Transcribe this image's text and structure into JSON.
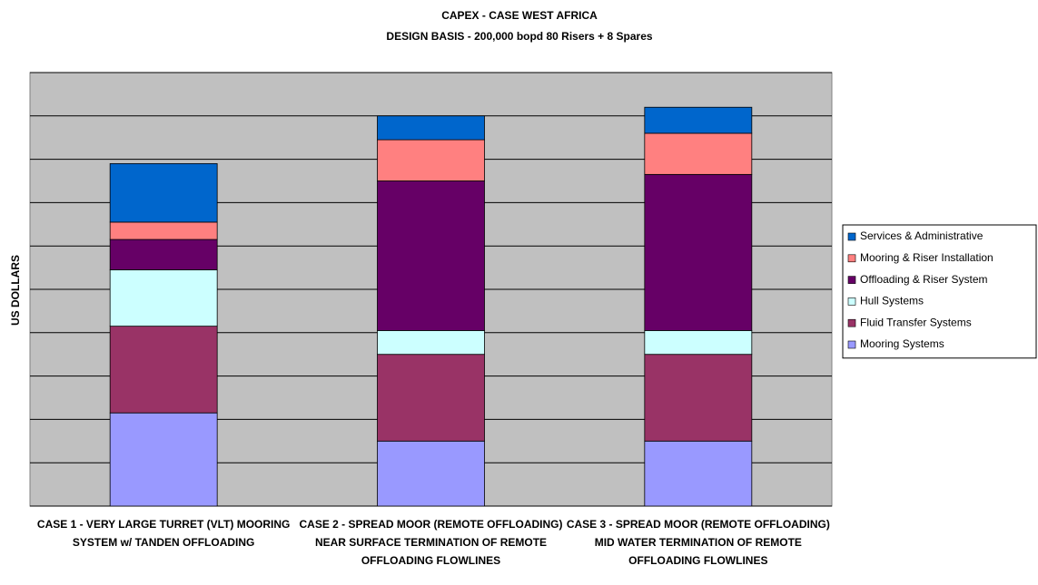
{
  "chart_data": {
    "type": "bar",
    "stacked": true,
    "title": "CAPEX - CASE WEST AFRICA",
    "subtitle": "DESIGN BASIS - 200,000 bopd 80 Risers + 8 Spares",
    "y_label": "US DOLLARS",
    "categories": [
      "CASE 1 - VERY LARGE TURRET (VLT) MOORING SYSTEM w/ TANDEN OFFLOADING",
      "CASE 2 - SPREAD MOOR (REMOTE OFFLOADING) NEAR SURFACE TERMINATION OF REMOTE OFFLOADING FLOWLINES",
      "CASE 3 - SPREAD MOOR (REMOTE OFFLOADING) MID WATER TERMINATION OF REMOTE OFFLOADING FLOWLINES"
    ],
    "series": [
      {
        "name": "Mooring Systems",
        "color": "#9999ff",
        "values": [
          2.15,
          1.5,
          1.5
        ]
      },
      {
        "name": "Fluid Transfer Systems",
        "color": "#993366",
        "values": [
          2.0,
          2.0,
          2.0
        ]
      },
      {
        "name": "Hull Systems",
        "color": "#ccffff",
        "values": [
          1.3,
          0.55,
          0.55
        ]
      },
      {
        "name": "Offloading & Riser System",
        "color": "#660066",
        "values": [
          0.7,
          3.45,
          3.6
        ]
      },
      {
        "name": "Mooring & Riser Installation",
        "color": "#ff8080",
        "values": [
          0.4,
          0.95,
          0.95
        ]
      },
      {
        "name": "Services & Administrative",
        "color": "#0066cc",
        "values": [
          1.35,
          0.55,
          0.6
        ]
      }
    ],
    "ylim": [
      0,
      10
    ],
    "yticks": [
      0,
      1,
      2,
      3,
      4,
      5,
      6,
      7,
      8,
      9,
      10
    ],
    "grid": true,
    "legend": "right"
  }
}
